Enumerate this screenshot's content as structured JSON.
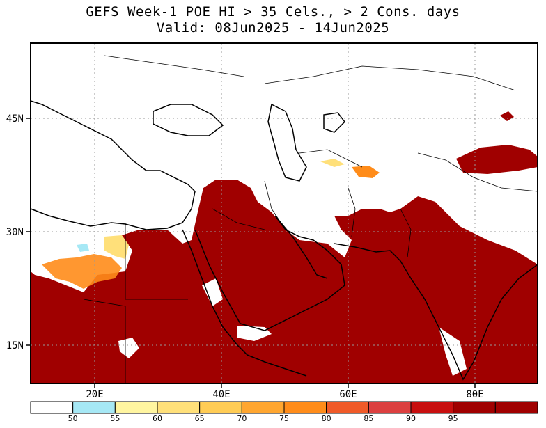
{
  "title": {
    "line1": "GEFS Week-1 POE HI > 35 Cels., > 2 Cons. days",
    "line2": "Valid: 08Jun2025 - 14Jun2025"
  },
  "map": {
    "lat_ticks": [
      {
        "value": 45,
        "label": "45N"
      },
      {
        "value": 30,
        "label": "30N"
      },
      {
        "value": 15,
        "label": "15N"
      }
    ],
    "lon_ticks": [
      {
        "value": 20,
        "label": "20E"
      },
      {
        "value": 40,
        "label": "40E"
      },
      {
        "value": 60,
        "label": "60E"
      },
      {
        "value": 80,
        "label": "80E"
      }
    ],
    "extent": {
      "lon_min": 10,
      "lon_max": 90,
      "lat_min": 10,
      "lat_max": 55
    }
  },
  "colorbar": {
    "bins": [
      {
        "color": "#ffffff"
      },
      {
        "color": "#a6e8f5",
        "label": "50"
      },
      {
        "color": "#fff5a0",
        "label": "55"
      },
      {
        "color": "#ffe07a",
        "label": "60"
      },
      {
        "color": "#ffcc55",
        "label": "65"
      },
      {
        "color": "#ffa630",
        "label": "70"
      },
      {
        "color": "#ff8c1a",
        "label": "75"
      },
      {
        "color": "#f05a28",
        "label": "80"
      },
      {
        "color": "#dc4040",
        "label": "85"
      },
      {
        "color": "#c80f0f",
        "label": "90"
      },
      {
        "color": "#a00000",
        "label": "95"
      },
      {
        "color": "#a00000"
      }
    ]
  },
  "colors": {
    "heat": "#a00000",
    "orange": "#ff8c1a",
    "yellow": "#ffe07a",
    "cyan": "#a6e8f5"
  }
}
